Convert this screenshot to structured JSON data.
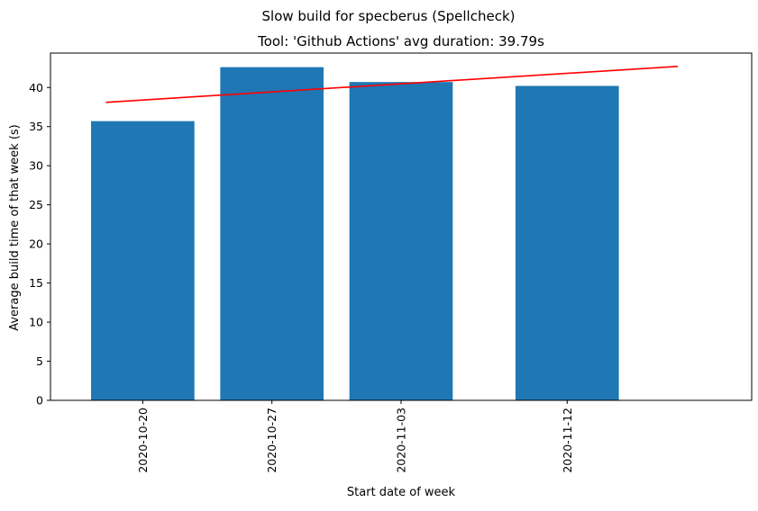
{
  "chart_data": {
    "type": "bar",
    "suptitle": "Slow build for specberus (Spellcheck)",
    "title": "Tool: 'Github Actions' avg duration: 39.79s",
    "xlabel": "Start date of week",
    "ylabel": "Average build time of that week (s)",
    "categories": [
      "2020-10-20",
      "2020-10-27",
      "2020-11-03",
      "2020-11-12"
    ],
    "values": [
      35.7,
      42.6,
      40.7,
      40.2
    ],
    "bar_color": "#1f77b4",
    "ylim": [
      0,
      44.4
    ],
    "xlim": [
      "2020-10-15",
      "2020-11-22"
    ],
    "yticks": [
      0,
      5,
      10,
      15,
      20,
      25,
      30,
      35,
      40
    ],
    "trend_line": {
      "color": "#ff0000",
      "x": [
        "2020-10-18",
        "2020-11-18"
      ],
      "y": [
        38.1,
        42.7
      ]
    },
    "grid": false
  }
}
